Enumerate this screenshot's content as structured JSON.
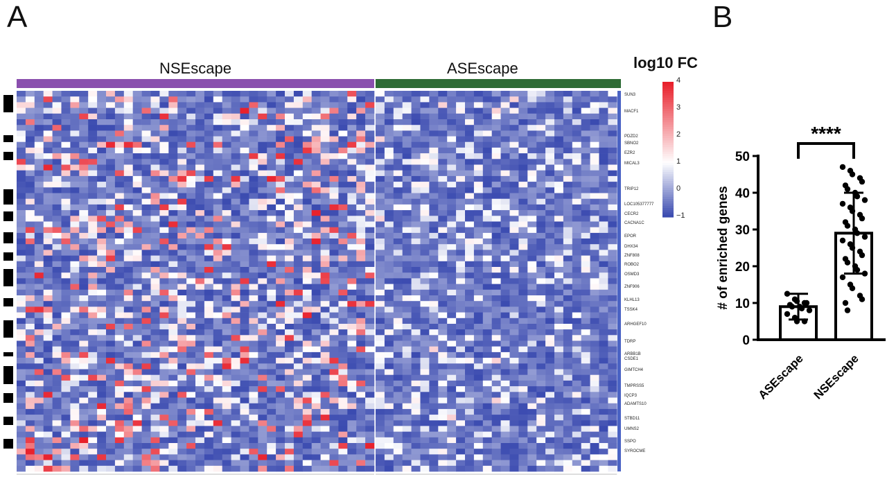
{
  "panels": {
    "a": "A",
    "b": "B"
  },
  "heatmap": {
    "groups": [
      {
        "name": "NSEscape",
        "color": "#8a4fae",
        "cols": 40
      },
      {
        "name": "ASEscape",
        "color": "#2e6b35",
        "cols": 27
      }
    ],
    "rows": 67,
    "legend": {
      "title": "log10 FC",
      "ticks": [
        "4",
        "3",
        "2",
        "1",
        "0",
        "−1"
      ],
      "min": -1,
      "max": 4,
      "colors": {
        "low": "#3b4bb0",
        "mid": "#ffffff",
        "high": "#e8202b"
      }
    },
    "gene_labels": [
      "SUN3",
      "MACF1",
      "PDZD2",
      "SBNO2",
      "EZR2",
      "MICAL3",
      "TRIP12",
      "LOC105377777",
      "CECR2",
      "CACNA1C",
      "EPOR",
      "DHX34",
      "ZNF808",
      "ROBO2",
      "OSMD3",
      "ZNF906",
      "KLHL13",
      "TSSK4",
      "ARHGEF10",
      "TDRP",
      "ARBB1B",
      "CSDE1",
      "GIMTCH4",
      "TMPRSS5",
      "IQCP3",
      "ADAMTS10",
      "STBD11",
      "UMNS2",
      "SSPO",
      "SYROCME"
    ]
  },
  "chart_data": {
    "type": "bar",
    "categories": [
      "ASEscape",
      "NSEscape"
    ],
    "values": [
      9,
      29
    ],
    "error_bars": [
      [
        5.5,
        12.5
      ],
      [
        18,
        40
      ]
    ],
    "points": {
      "ASEscape": [
        12.5,
        11,
        10.5,
        10,
        10,
        9.5,
        9,
        9,
        8.5,
        8,
        7,
        6,
        5,
        5
      ],
      "NSEscape": [
        47,
        46,
        45,
        44,
        43,
        42,
        41,
        40,
        39,
        38,
        37,
        36,
        35,
        34,
        33,
        32,
        31,
        30,
        29,
        28,
        27,
        26,
        25,
        24,
        23,
        22,
        21,
        20,
        19,
        18,
        17,
        15,
        14,
        12,
        11,
        10,
        8
      ]
    },
    "ylabel": "# of enriched genes",
    "ylim": [
      0,
      50
    ],
    "yticks": [
      "0",
      "10",
      "20",
      "30",
      "40",
      "50"
    ],
    "significance": "****"
  }
}
